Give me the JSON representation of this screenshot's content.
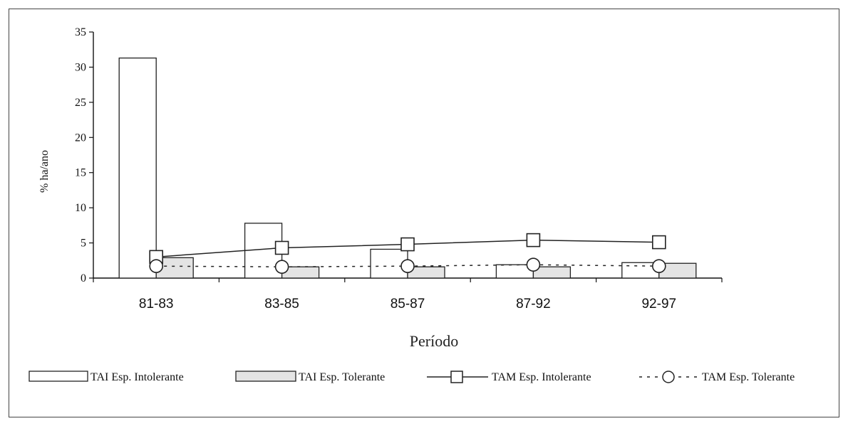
{
  "chart_data": {
    "type": "bar",
    "categories": [
      "81-83",
      "83-85",
      "85-87",
      "87-92",
      "92-97"
    ],
    "series": [
      {
        "name": "TAI Esp. Intolerante",
        "kind": "bar",
        "fill": "#ffffff",
        "values": [
          31.3,
          7.8,
          4.1,
          1.9,
          2.2
        ]
      },
      {
        "name": "TAI Esp. Tolerante",
        "kind": "bar",
        "fill": "#e4e4e4",
        "values": [
          2.9,
          1.6,
          1.6,
          1.6,
          2.1
        ]
      },
      {
        "name": "TAM Esp. Intolerante",
        "kind": "line",
        "style": "solid",
        "marker": "square",
        "values": [
          3.0,
          4.3,
          4.8,
          5.4,
          5.1
        ]
      },
      {
        "name": "TAM Esp. Tolerante",
        "kind": "line",
        "style": "dotted",
        "marker": "circle",
        "values": [
          1.7,
          1.6,
          1.7,
          1.9,
          1.7
        ]
      }
    ],
    "xlabel": "Período",
    "ylabel": "% ha/ano",
    "ylim": [
      0,
      35
    ],
    "yticks": [
      "0",
      "5",
      "10",
      "15",
      "20",
      "25",
      "30",
      "35"
    ],
    "grid": false,
    "legend_position": "bottom"
  }
}
